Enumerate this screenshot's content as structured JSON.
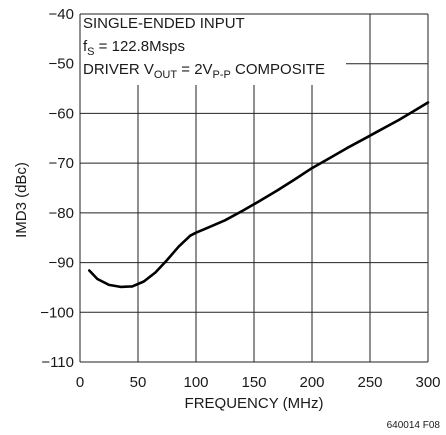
{
  "chart_data": {
    "type": "line",
    "title": "",
    "xlabel": "FREQUENCY (MHz)",
    "ylabel": "IMD3 (dBc)",
    "xlim": [
      0,
      300
    ],
    "ylim": [
      -110,
      -40
    ],
    "xticks": [
      0,
      50,
      100,
      150,
      200,
      250,
      300
    ],
    "yticks": [
      -40,
      -50,
      -60,
      -70,
      -80,
      -90,
      -100,
      -110
    ],
    "grid": true,
    "legend": "none",
    "annotations": {
      "line1": "SINGLE-ENDED INPUT",
      "line2_main": "f",
      "line2_sub": "S",
      "line2_rest": " = 122.8Msps",
      "line3_a": "DRIVER V",
      "line3_sub1": "OUT",
      "line3_b": " = 2V",
      "line3_sub2": "P-P",
      "line3_c": " COMPOSITE"
    },
    "figure_code": "640014 F08",
    "series": [
      {
        "color": "#000000",
        "x": [
          8,
          15,
          25,
          35,
          45,
          55,
          65,
          75,
          85,
          95,
          100,
          110,
          125,
          140,
          155,
          170,
          185,
          200,
          215,
          230,
          245,
          260,
          275,
          290,
          300
        ],
        "y": [
          -91.6,
          -93.3,
          -94.5,
          -94.9,
          -94.8,
          -93.8,
          -92.0,
          -89.5,
          -86.8,
          -84.6,
          -84.0,
          -83.0,
          -81.5,
          -79.6,
          -77.6,
          -75.5,
          -73.3,
          -71.0,
          -69.0,
          -67.0,
          -65.1,
          -63.2,
          -61.3,
          -59.2,
          -57.8
        ]
      }
    ]
  }
}
